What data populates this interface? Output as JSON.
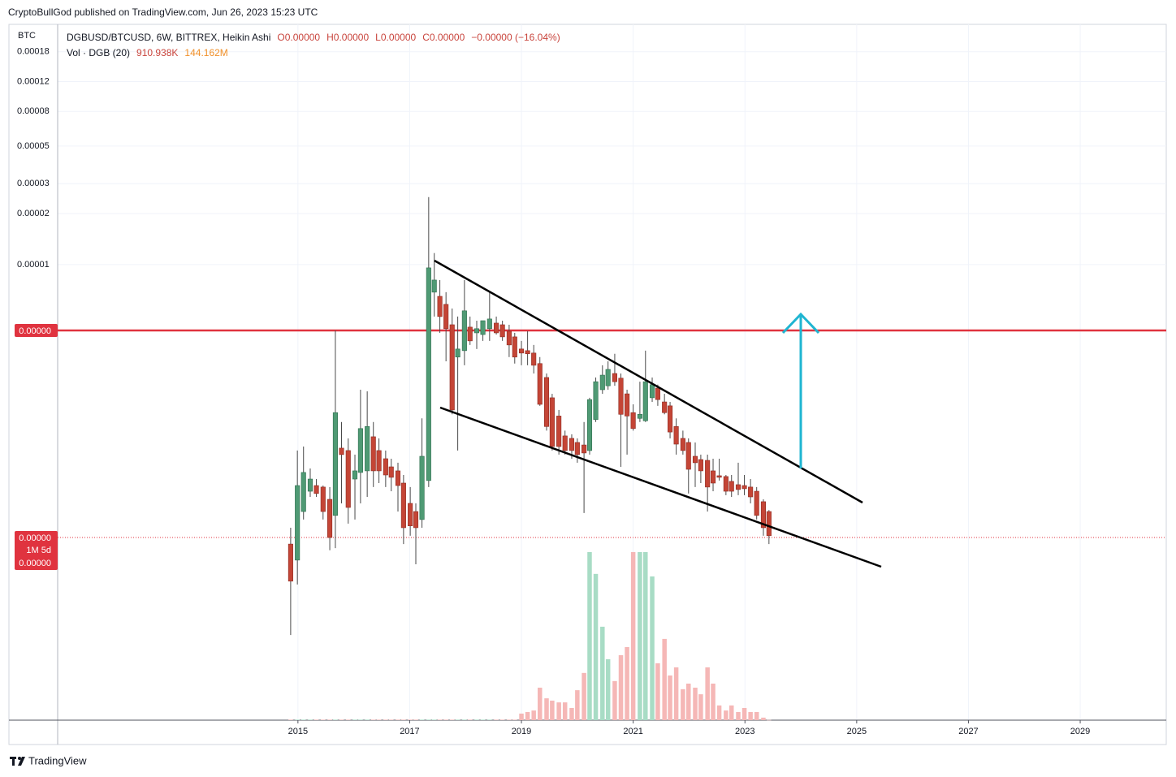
{
  "header": {
    "byline": "CryptoBullGod published on TradingView.com, Jun 26, 2023 15:23 UTC"
  },
  "chart_data": {
    "type": "candlestick",
    "title": "DGBUSD/BTCUSD, 6W, BITTREX, Heikin Ashi",
    "currency": "BTC",
    "ohlc_legend": [
      "O0.00000",
      "H0.00000",
      "L0.00000",
      "C0.00000",
      "−0.00000 (−16.04%)"
    ],
    "volume_label": "Vol · DGB (20)",
    "volume_value_label": "910.938K",
    "volume_ma_label": "144.162M",
    "log_scale": true,
    "grid": true,
    "xlim": [
      2010.7,
      2030.54
    ],
    "xticks": [
      2015,
      2017,
      2019,
      2021,
      2023,
      2025,
      2027,
      2029
    ],
    "ylim": [
      2.06e-08,
      0.000261
    ],
    "yticks": [
      0.00018,
      0.00012,
      8e-05,
      5e-05,
      3e-05,
      2e-05,
      1e-05
    ],
    "y2lim": [
      0,
      2740000000
    ],
    "colors": {
      "up": "#4f9a74",
      "down": "#c44536",
      "up_volume": "#a8dcc5",
      "down_volume": "#f5b7b6",
      "wick": "#4a4a4a"
    },
    "hline": {
      "value": 4.09e-06,
      "label": "0.00000",
      "color": "#e0333f"
    },
    "last_price": {
      "value": 2.46e-07,
      "label": "0.00000"
    },
    "countdown": "1M 5d",
    "last_close_label": "0.00000",
    "x": [
      2014.87,
      2014.99,
      2015.1,
      2015.22,
      2015.33,
      2015.45,
      2015.57,
      2015.67,
      2015.78,
      2015.9,
      2016.02,
      2016.12,
      2016.24,
      2016.35,
      2016.45,
      2016.57,
      2016.67,
      2016.79,
      2016.89,
      2017.01,
      2017.11,
      2017.22,
      2017.34,
      2017.44,
      2017.54,
      2017.65,
      2017.76,
      2017.86,
      2017.98,
      2018.08,
      2018.2,
      2018.31,
      2018.43,
      2018.55,
      2018.66,
      2018.78,
      2018.88,
      2019.0,
      2019.11,
      2019.22,
      2019.33,
      2019.45,
      2019.55,
      2019.67,
      2019.78,
      2019.9,
      2020.0,
      2020.12,
      2020.22,
      2020.33,
      2020.45,
      2020.55,
      2020.67,
      2020.78,
      2020.89,
      2021.0,
      2021.12,
      2021.22,
      2021.34,
      2021.44,
      2021.56,
      2021.66,
      2021.77,
      2021.89,
      2021.99,
      2022.11,
      2022.21,
      2022.33,
      2022.43,
      2022.54,
      2022.66,
      2022.76,
      2022.88,
      2022.99,
      2023.1,
      2023.21,
      2023.33,
      2023.43
    ],
    "open": [
      2.25e-07,
      1.81e-07,
      3.5e-07,
      4.61e-07,
      4.98e-07,
      4.88e-07,
      4.13e-07,
      3.32e-07,
      8.28e-07,
      8.01e-07,
      5.44e-07,
      5.95e-07,
      6.08e-07,
      9.66e-07,
      8.01e-07,
      7.17e-07,
      6.42e-07,
      6.08e-07,
      5.15e-07,
      3.91e-07,
      3.5e-07,
      3.14e-07,
      5.33e-07,
      6.88e-06,
      6.5e-06,
      5.83e-06,
      4.42e-06,
      2.85e-06,
      3.11e-06,
      4.28e-06,
      3.96e-06,
      3.87e-06,
      4.19e-06,
      4.52e-06,
      4.42e-06,
      4.05e-06,
      3.75e-06,
      3.18e-06,
      3.11e-06,
      3.01e-06,
      2.61e-06,
      2.16e-06,
      1.64e-06,
      1.28e-06,
      9.77e-07,
      9.45e-07,
      8.94e-07,
      8.64e-07,
      8.01e-07,
      1.22e-06,
      1.83e-06,
      1.93e-06,
      2.28e-06,
      2.14e-06,
      1.73e-06,
      1.34e-06,
      1.24e-06,
      1.2e-06,
      1.64e-06,
      1.87e-06,
      1.55e-06,
      1.47e-06,
      1.11e-06,
      9.45e-07,
      8.94e-07,
      7.41e-07,
      7.09e-07,
      7.01e-07,
      6.08e-07,
      5.69e-07,
      5.63e-07,
      5.27e-07,
      5.04e-07,
      4.98e-07,
      4.88e-07,
      4.61e-07,
      4e-07,
      3.5e-07
    ],
    "high": [
      2.81e-07,
      8.01e-07,
      8.46e-07,
      6.28e-07,
      5.44e-07,
      4.98e-07,
      4.88e-07,
      4.09e-06,
      1.18e-06,
      9.45e-07,
      7.58e-07,
      1.83e-06,
      1.79e-06,
      1.18e-06,
      9.45e-07,
      8.01e-07,
      7.17e-07,
      6.79e-07,
      5.75e-07,
      4.88e-07,
      3.91e-07,
      1.24e-06,
      2.5e-05,
      1.17e-05,
      8.11e-06,
      6.88e-06,
      5.51e-06,
      4.94e-06,
      8.11e-06,
      4.94e-06,
      4.67e-06,
      4.67e-06,
      6.88e-06,
      4.94e-06,
      4.67e-06,
      4.42e-06,
      3.96e-06,
      3.55e-06,
      4.05e-06,
      3.36e-06,
      2.85e-06,
      2.28e-06,
      1.73e-06,
      1.39e-06,
      1.05e-06,
      9.99e-07,
      9.45e-07,
      1.18e-06,
      1.64e-06,
      2.16e-06,
      2.55e-06,
      2.69e-06,
      2.98e-06,
      2.28e-06,
      1.83e-06,
      1.5e-06,
      2.04e-06,
      3.11e-06,
      2.16e-06,
      1.96e-06,
      1.73e-06,
      1.55e-06,
      1.24e-06,
      1.05e-06,
      9.45e-07,
      8.94e-07,
      7.58e-07,
      7.58e-07,
      7.17e-07,
      7.17e-07,
      5.75e-07,
      5.75e-07,
      6.79e-07,
      5.75e-07,
      5.44e-07,
      4.88e-07,
      4.13e-07,
      3.57e-07
    ],
    "low": [
      6.55e-08,
      1.3e-07,
      3.14e-07,
      4.27e-07,
      4.27e-07,
      3.14e-07,
      2.07e-07,
      2.13e-07,
      3.91e-07,
      2.97e-07,
      3.14e-07,
      3.91e-07,
      4.27e-07,
      4.88e-07,
      5.15e-07,
      4.88e-07,
      4.61e-07,
      3.5e-07,
      2.25e-07,
      2.52e-07,
      1.71e-07,
      2.81e-07,
      4.88e-07,
      4.94e-06,
      3.96e-06,
      2.69e-06,
      1.31e-06,
      8.01e-07,
      2.55e-06,
      3.36e-06,
      3.18e-06,
      3.55e-06,
      3.55e-06,
      3.87e-06,
      3.55e-06,
      2.85e-06,
      2.61e-06,
      2.55e-06,
      2.55e-06,
      2.28e-06,
      1.47e-06,
      1.05e-06,
      8.01e-07,
      7.58e-07,
      7.58e-07,
      7.17e-07,
      6.79e-07,
      3.43e-07,
      7.58e-07,
      1.18e-06,
      1.73e-06,
      1.83e-06,
      1.93e-06,
      6.42e-07,
      7.58e-07,
      1.05e-06,
      1.18e-06,
      1.18e-06,
      1.55e-06,
      1.47e-06,
      1.31e-06,
      9.45e-07,
      7.58e-07,
      7.58e-07,
      4.47e-07,
      4.88e-07,
      5.15e-07,
      3.5e-07,
      4.61e-07,
      5.33e-07,
      4.37e-07,
      4.27e-07,
      4.37e-07,
      4.37e-07,
      3.91e-07,
      3.14e-07,
      2.52e-07,
      2.25e-07
    ],
    "close": [
      1.36e-07,
      4.98e-07,
      5.95e-07,
      5.44e-07,
      4.47e-07,
      3.5e-07,
      2.46e-07,
      1.34e-06,
      7.58e-07,
      3.7e-07,
      6.08e-07,
      1.08e-06,
      1.11e-06,
      6.08e-07,
      6.08e-07,
      5.75e-07,
      5.57e-07,
      4.98e-07,
      2.81e-07,
      2.88e-07,
      2.81e-07,
      7.41e-07,
      9.57e-06,
      8.11e-06,
      4.94e-06,
      4.19e-06,
      1.39e-06,
      3.18e-06,
      5.34e-06,
      3.55e-06,
      4.19e-06,
      4.67e-06,
      4.78e-06,
      3.96e-06,
      3.75e-06,
      3.36e-06,
      2.85e-06,
      3.01e-06,
      2.98e-06,
      2.55e-06,
      1.5e-06,
      1.11e-06,
      8.46e-07,
      8.46e-07,
      8.01e-07,
      8.01e-07,
      7.58e-07,
      7.75e-07,
      1.6e-06,
      2.04e-06,
      2.23e-06,
      2.41e-06,
      2.04e-06,
      1.31e-06,
      1.28e-06,
      1.08e-06,
      1.31e-06,
      2.04e-06,
      1.96e-06,
      1.6e-06,
      1.34e-06,
      1.03e-06,
      8.74e-07,
      8.01e-07,
      6.21e-07,
      6.79e-07,
      6.08e-07,
      4.88e-07,
      5.15e-07,
      5.57e-07,
      4.61e-07,
      4.61e-07,
      4.72e-07,
      4.77e-07,
      4.27e-07,
      3.32e-07,
      2.81e-07,
      2.52e-07
    ],
    "volume": [
      2000000,
      2000000,
      2000000,
      2000000,
      2000000,
      2000000,
      2000000,
      2000000,
      2000000,
      2000000,
      2000000,
      2000000,
      2000000,
      2000000,
      2000000,
      2000000,
      2000000,
      2000000,
      2000000,
      2000000,
      2000000,
      2000000,
      2000000,
      2000000,
      2000000,
      2000000,
      2000000,
      2000000,
      2000000,
      2000000,
      2000000,
      2000000,
      2000000,
      2000000,
      2000000,
      2000000,
      2000000,
      26000000,
      32000000,
      38000000,
      128000000,
      86000000,
      77000000,
      70000000,
      70000000,
      48000000,
      118000000,
      186000000,
      662000000,
      576000000,
      368000000,
      240000000,
      154000000,
      256000000,
      288000000,
      662000000,
      662000000,
      662000000,
      566000000,
      224000000,
      320000000,
      176000000,
      208000000,
      122000000,
      144000000,
      128000000,
      102000000,
      208000000,
      144000000,
      58000000,
      38000000,
      58000000,
      32000000,
      48000000,
      32000000,
      32000000,
      10000000,
      910938
    ]
  },
  "footer": {
    "brand": "TradingView"
  }
}
